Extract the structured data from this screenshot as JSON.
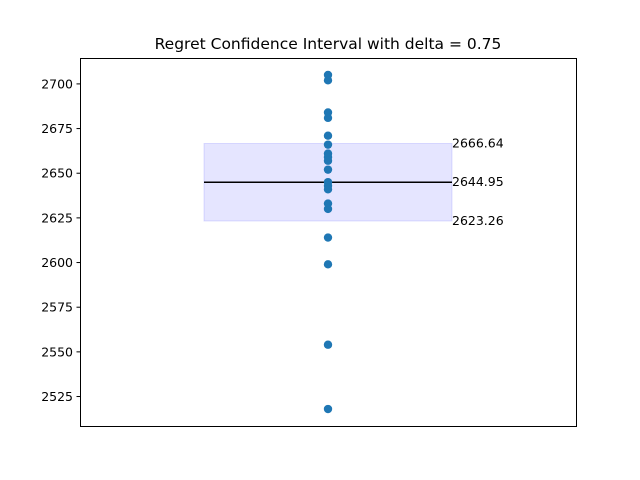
{
  "chart_data": {
    "type": "scatter",
    "title": "Regret Confidence Interval with delta = 0.75",
    "xlabel": "",
    "ylabel": "",
    "ylim": [
      2508.5,
      2714.5
    ],
    "yticks": [
      2525,
      2550,
      2575,
      2600,
      2625,
      2650,
      2675,
      2700
    ],
    "x_ticks_visible": false,
    "grid": false,
    "point_color": "#1f77b4",
    "points": [
      2705,
      2702,
      2684,
      2681,
      2671,
      2666,
      2661,
      2659,
      2657,
      2652,
      2645,
      2643,
      2641,
      2633,
      2630,
      2614,
      2599,
      2554,
      2518
    ],
    "interval": {
      "lower": 2623.26,
      "mean": 2644.95,
      "upper": 2666.64,
      "lower_label": "2623.26",
      "mean_label": "2644.95",
      "upper_label": "2666.64",
      "fill_color": "#0000ff",
      "fill_opacity": 0.1,
      "line_color": "#000000"
    }
  }
}
